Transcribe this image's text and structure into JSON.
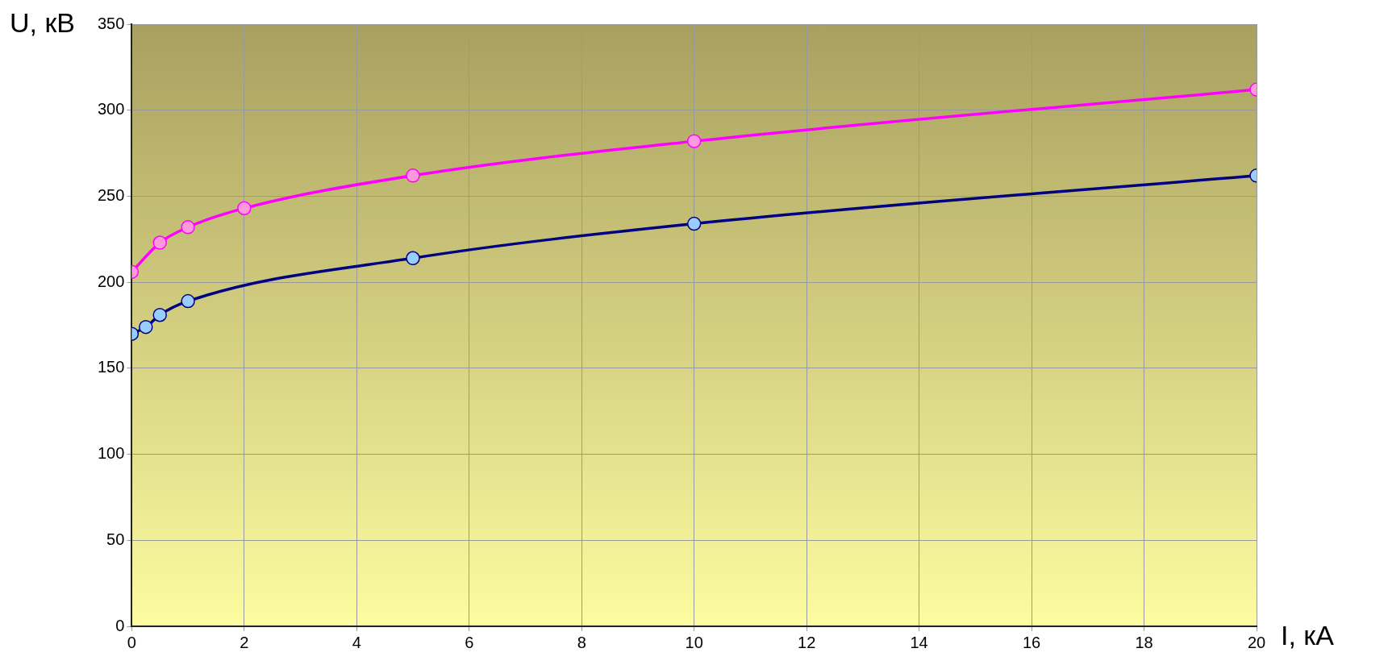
{
  "chart_data": {
    "type": "line",
    "xlabel": "I, кА",
    "ylabel": "U, кВ",
    "xlim": [
      0,
      20
    ],
    "xticks": [
      0,
      2,
      4,
      6,
      8,
      10,
      12,
      14,
      16,
      18,
      20
    ],
    "ylim": [
      0,
      350
    ],
    "yticks": [
      0,
      50,
      100,
      150,
      200,
      250,
      300,
      350
    ],
    "grid": true,
    "legend": false,
    "marker": "circle",
    "line_style": "solid",
    "series": [
      {
        "color": "#ff00ff",
        "x": [
          0,
          0.5,
          1,
          2,
          5,
          10,
          20
        ],
        "values": [
          206,
          223,
          232,
          243,
          262,
          282,
          312
        ]
      },
      {
        "color": "#000080",
        "x": [
          0,
          0.25,
          0.5,
          1,
          5,
          10,
          20
        ],
        "values": [
          170,
          174,
          181,
          189,
          214,
          234,
          262
        ]
      }
    ]
  }
}
